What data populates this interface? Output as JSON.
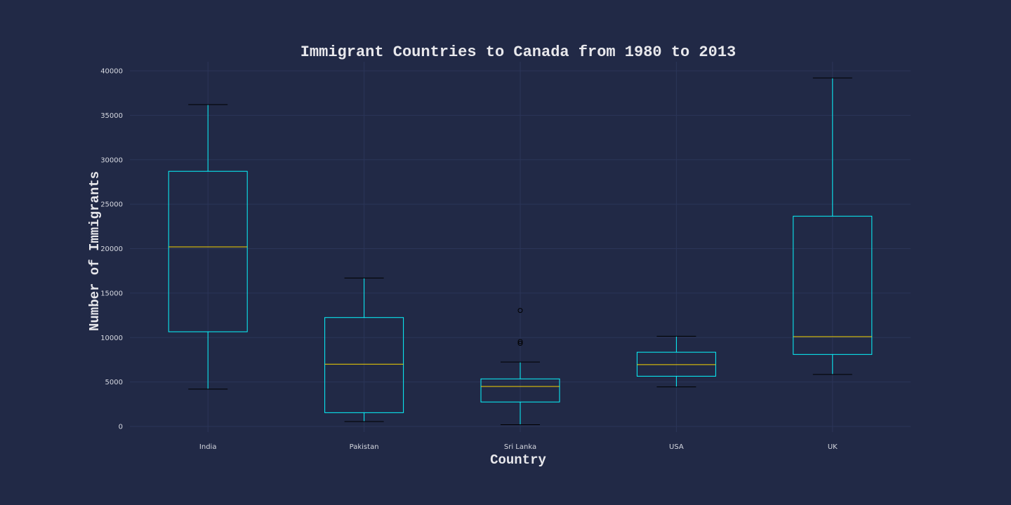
{
  "chart_data": {
    "type": "box",
    "title": "Immigrant Countries to Canada from 1980 to 2013",
    "xlabel": "Country",
    "ylabel": "Number of Immigrants",
    "categories": [
      "India",
      "Pakistan",
      "Sri Lanka",
      "USA",
      "UK"
    ],
    "ylim": [
      -600,
      41000
    ],
    "yticks": [
      0,
      5000,
      10000,
      15000,
      20000,
      25000,
      30000,
      35000,
      40000
    ],
    "grid": true,
    "boxes": [
      {
        "category": "India",
        "whisker_low": 4200,
        "q1": 10650,
        "median": 20200,
        "q3": 28700,
        "whisker_high": 36200,
        "outliers": []
      },
      {
        "category": "Pakistan",
        "whisker_low": 550,
        "q1": 1550,
        "median": 7000,
        "q3": 12250,
        "whisker_high": 16700,
        "outliers": []
      },
      {
        "category": "Sri Lanka",
        "whisker_low": 200,
        "q1": 2750,
        "median": 4500,
        "q3": 5350,
        "whisker_high": 7250,
        "outliers": [
          9350,
          9550,
          13050
        ]
      },
      {
        "category": "USA",
        "whisker_low": 4450,
        "q1": 5650,
        "median": 6950,
        "q3": 8350,
        "whisker_high": 10150,
        "outliers": []
      },
      {
        "category": "UK",
        "whisker_low": 5850,
        "q1": 8100,
        "median": 10100,
        "q3": 23650,
        "whisker_high": 39200,
        "outliers": []
      }
    ],
    "colors": {
      "background": "#212946",
      "box": "#08f7fe",
      "median": "#f5d300",
      "whisker_cap": "#000000",
      "grid": "#2b3558",
      "text": "#d6d8e0"
    }
  }
}
